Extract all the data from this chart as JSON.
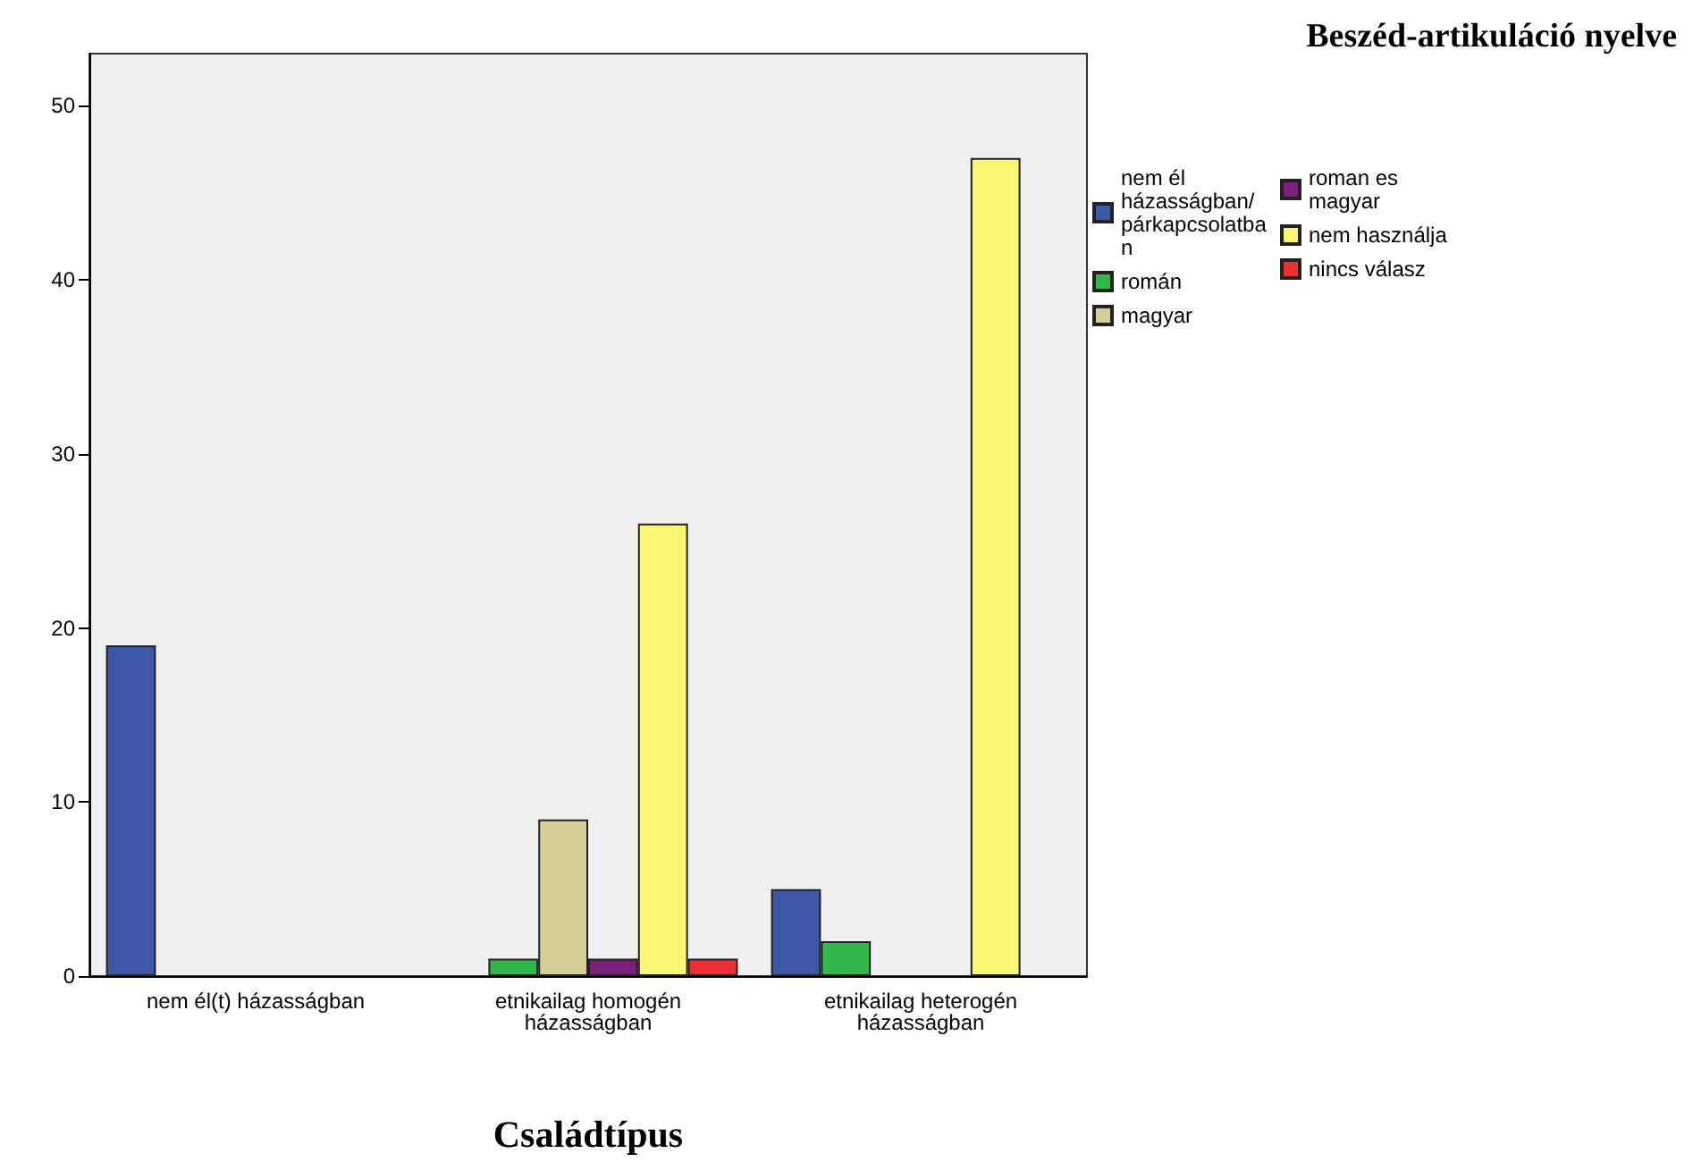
{
  "chart_data": {
    "type": "bar",
    "legend_title": "Beszéd-artikuláció nyelve",
    "xlabel": "Családtípus",
    "categories": [
      "nem él(t) házasságban",
      "etnikailag homogén\nházasságban",
      "etnikailag heterogén\nházasságban"
    ],
    "series": [
      {
        "name": "nem él házasságban/párkapcsolatban",
        "color": "#3e58a8",
        "values": [
          19,
          null,
          5
        ]
      },
      {
        "name": "román",
        "color": "#30b84a",
        "values": [
          null,
          1,
          2
        ]
      },
      {
        "name": "magyar",
        "color": "#d3ce97",
        "values": [
          null,
          9,
          null
        ]
      },
      {
        "name": "roman es magyar",
        "color": "#7a1f7a",
        "values": [
          null,
          1,
          null
        ]
      },
      {
        "name": "nem használja",
        "color": "#fbf672",
        "values": [
          null,
          26,
          47
        ]
      },
      {
        "name": "nincs válasz",
        "color": "#ec3036",
        "values": [
          null,
          1,
          null
        ]
      }
    ],
    "ylim": [
      0,
      53
    ],
    "yticks": [
      0,
      10,
      20,
      30,
      40,
      50
    ],
    "grid": false,
    "legend": "top right"
  }
}
